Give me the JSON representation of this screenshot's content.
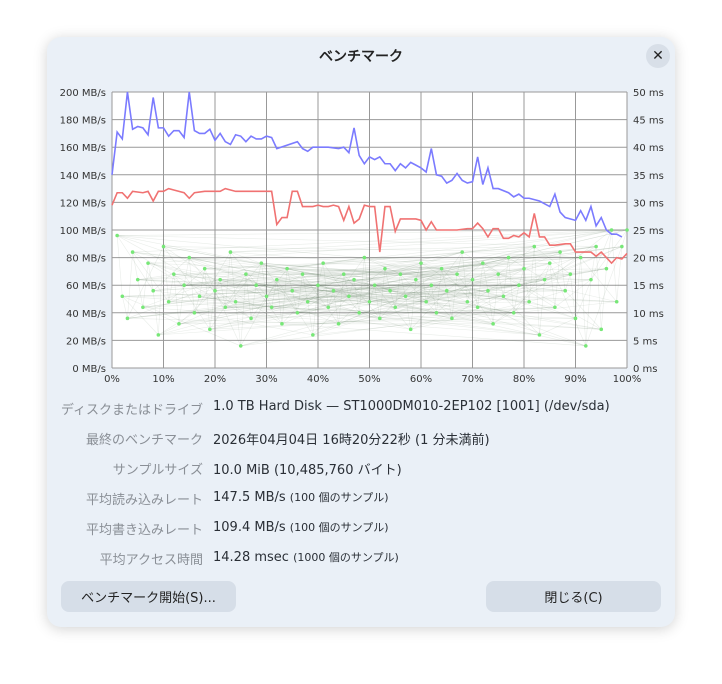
{
  "dialog": {
    "title": "ベンチマーク",
    "close_icon": "close-icon"
  },
  "colors": {
    "read": "#7b7bff",
    "write": "#f07272",
    "access": "#77e777",
    "bg": "#eaf0f7"
  },
  "chart_data": {
    "type": "line",
    "xlabel": "",
    "ylabel_left": "MB/s",
    "ylabel_right": "ms",
    "xlim": [
      0,
      100
    ],
    "ylim_left": [
      0,
      200
    ],
    "ylim_right": [
      0,
      50
    ],
    "x_ticks": [
      "0%",
      "10%",
      "20%",
      "30%",
      "40%",
      "50%",
      "60%",
      "70%",
      "80%",
      "90%",
      "100%"
    ],
    "y_ticks_left": [
      "0 MB/s",
      "20 MB/s",
      "40 MB/s",
      "60 MB/s",
      "80 MB/s",
      "100 MB/s",
      "120 MB/s",
      "140 MB/s",
      "160 MB/s",
      "180 MB/s",
      "200 MB/s"
    ],
    "y_ticks_right": [
      "0 ms",
      "5 ms",
      "10 ms",
      "15 ms",
      "20 ms",
      "25 ms",
      "30 ms",
      "35 ms",
      "40 ms",
      "45 ms",
      "50 ms"
    ],
    "grid": true,
    "series": [
      {
        "name": "read",
        "axis": "left",
        "points": [
          [
            0,
            140
          ],
          [
            1,
            171
          ],
          [
            2,
            166
          ],
          [
            3,
            200
          ],
          [
            4,
            173
          ],
          [
            5,
            175
          ],
          [
            6,
            174
          ],
          [
            7,
            169
          ],
          [
            8,
            196
          ],
          [
            9,
            174
          ],
          [
            10,
            174
          ],
          [
            11,
            168
          ],
          [
            12,
            172
          ],
          [
            13,
            172
          ],
          [
            14,
            167
          ],
          [
            15,
            200
          ],
          [
            16,
            172
          ],
          [
            17,
            170
          ],
          [
            18,
            170
          ],
          [
            19,
            173
          ],
          [
            20,
            165
          ],
          [
            21,
            170
          ],
          [
            22,
            164
          ],
          [
            23,
            162
          ],
          [
            24,
            169
          ],
          [
            25,
            168
          ],
          [
            26,
            164
          ],
          [
            27,
            168
          ],
          [
            28,
            166
          ],
          [
            29,
            166
          ],
          [
            30,
            168
          ],
          [
            31,
            167
          ],
          [
            32,
            159
          ],
          [
            36,
            164
          ],
          [
            37,
            159
          ],
          [
            38,
            157
          ],
          [
            39,
            160
          ],
          [
            42,
            160
          ],
          [
            44,
            159
          ],
          [
            45,
            160
          ],
          [
            46,
            156
          ],
          [
            47,
            174
          ],
          [
            48,
            154
          ],
          [
            49,
            148
          ],
          [
            50,
            153
          ],
          [
            51,
            151
          ],
          [
            52,
            153
          ],
          [
            53,
            148
          ],
          [
            54,
            148
          ],
          [
            55,
            143
          ],
          [
            56,
            148
          ],
          [
            57,
            145
          ],
          [
            58,
            149
          ],
          [
            59,
            147
          ],
          [
            60,
            145
          ],
          [
            61,
            142
          ],
          [
            62,
            159
          ],
          [
            63,
            140
          ],
          [
            64,
            139
          ],
          [
            65,
            134
          ],
          [
            66,
            136
          ],
          [
            67,
            141
          ],
          [
            68,
            136
          ],
          [
            69,
            134
          ],
          [
            70,
            135
          ],
          [
            71,
            153
          ],
          [
            72,
            133
          ],
          [
            73,
            145
          ],
          [
            74,
            130
          ],
          [
            75,
            130
          ],
          [
            77,
            127
          ],
          [
            78,
            124
          ],
          [
            79,
            126
          ],
          [
            80,
            123
          ],
          [
            81,
            123
          ],
          [
            83,
            121
          ],
          [
            85,
            117
          ],
          [
            86,
            126
          ],
          [
            87,
            113
          ],
          [
            88,
            109
          ],
          [
            90,
            107
          ],
          [
            91,
            114
          ],
          [
            92,
            107
          ],
          [
            93,
            117
          ],
          [
            94,
            103
          ],
          [
            95,
            109
          ],
          [
            96,
            100
          ],
          [
            97,
            97
          ],
          [
            98,
            97
          ],
          [
            99,
            95
          ]
        ]
      },
      {
        "name": "write",
        "axis": "left",
        "points": [
          [
            0,
            118
          ],
          [
            1,
            127
          ],
          [
            2,
            127
          ],
          [
            3,
            123
          ],
          [
            4,
            128
          ],
          [
            6,
            127
          ],
          [
            7,
            128
          ],
          [
            8,
            121
          ],
          [
            9,
            128
          ],
          [
            10,
            128
          ],
          [
            11,
            130
          ],
          [
            12,
            129
          ],
          [
            14,
            127
          ],
          [
            15,
            123
          ],
          [
            16,
            127
          ],
          [
            18,
            128
          ],
          [
            21,
            128
          ],
          [
            22,
            130
          ],
          [
            24,
            128
          ],
          [
            26,
            128
          ],
          [
            30,
            128
          ],
          [
            31,
            128
          ],
          [
            32,
            104
          ],
          [
            33,
            109
          ],
          [
            34,
            109
          ],
          [
            35,
            128
          ],
          [
            36,
            128
          ],
          [
            37,
            117
          ],
          [
            39,
            117
          ],
          [
            40,
            118
          ],
          [
            41,
            117
          ],
          [
            42,
            117
          ],
          [
            43,
            118
          ],
          [
            44,
            117
          ],
          [
            45,
            107
          ],
          [
            46,
            117
          ],
          [
            47,
            105
          ],
          [
            48,
            108
          ],
          [
            49,
            118
          ],
          [
            50,
            117
          ],
          [
            51,
            117
          ],
          [
            52,
            84
          ],
          [
            53,
            117
          ],
          [
            54,
            117
          ],
          [
            55,
            99
          ],
          [
            56,
            108
          ],
          [
            57,
            108
          ],
          [
            58,
            108
          ],
          [
            59,
            108
          ],
          [
            60,
            107
          ],
          [
            61,
            100
          ],
          [
            62,
            106
          ],
          [
            63,
            100
          ],
          [
            65,
            100
          ],
          [
            67,
            100
          ],
          [
            69,
            101
          ],
          [
            70,
            101
          ],
          [
            71,
            105
          ],
          [
            72,
            101
          ],
          [
            73,
            95
          ],
          [
            74,
            101
          ],
          [
            75,
            101
          ],
          [
            76,
            94
          ],
          [
            77,
            94
          ],
          [
            78,
            96
          ],
          [
            79,
            95
          ],
          [
            80,
            98
          ],
          [
            81,
            95
          ],
          [
            82,
            112
          ],
          [
            83,
            95
          ],
          [
            84,
            95
          ],
          [
            85,
            89
          ],
          [
            86,
            89
          ],
          [
            88,
            90
          ],
          [
            89,
            90
          ],
          [
            90,
            84
          ],
          [
            91,
            84
          ],
          [
            92,
            84
          ],
          [
            93,
            84
          ],
          [
            94,
            81
          ],
          [
            95,
            84
          ],
          [
            96,
            80
          ],
          [
            97,
            76
          ],
          [
            98,
            80
          ],
          [
            99,
            79
          ],
          [
            100,
            83
          ]
        ]
      },
      {
        "name": "access_time",
        "axis": "right",
        "type": "scatter",
        "points": [
          [
            1,
            24
          ],
          [
            2,
            13
          ],
          [
            3,
            9
          ],
          [
            4,
            21
          ],
          [
            5,
            16
          ],
          [
            6,
            11
          ],
          [
            7,
            19
          ],
          [
            8,
            14
          ],
          [
            9,
            6
          ],
          [
            10,
            22
          ],
          [
            11,
            12
          ],
          [
            12,
            17
          ],
          [
            13,
            8
          ],
          [
            14,
            15
          ],
          [
            15,
            20
          ],
          [
            16,
            10
          ],
          [
            17,
            13
          ],
          [
            18,
            18
          ],
          [
            19,
            7
          ],
          [
            20,
            14
          ],
          [
            21,
            16
          ],
          [
            22,
            11
          ],
          [
            23,
            21
          ],
          [
            24,
            12
          ],
          [
            25,
            4
          ],
          [
            26,
            17
          ],
          [
            27,
            9
          ],
          [
            28,
            15
          ],
          [
            29,
            19
          ],
          [
            30,
            13
          ],
          [
            31,
            11
          ],
          [
            32,
            16
          ],
          [
            33,
            8
          ],
          [
            34,
            18
          ],
          [
            35,
            14
          ],
          [
            36,
            10
          ],
          [
            37,
            17
          ],
          [
            38,
            12
          ],
          [
            39,
            6
          ],
          [
            40,
            15
          ],
          [
            41,
            19
          ],
          [
            42,
            11
          ],
          [
            43,
            14
          ],
          [
            44,
            8
          ],
          [
            45,
            17
          ],
          [
            46,
            13
          ],
          [
            47,
            16
          ],
          [
            48,
            10
          ],
          [
            49,
            20
          ],
          [
            50,
            12
          ],
          [
            51,
            15
          ],
          [
            52,
            9
          ],
          [
            53,
            18
          ],
          [
            54,
            14
          ],
          [
            55,
            11
          ],
          [
            56,
            17
          ],
          [
            57,
            13
          ],
          [
            58,
            7
          ],
          [
            59,
            16
          ],
          [
            60,
            19
          ],
          [
            61,
            12
          ],
          [
            62,
            15
          ],
          [
            63,
            10
          ],
          [
            64,
            18
          ],
          [
            65,
            14
          ],
          [
            66,
            9
          ],
          [
            67,
            17
          ],
          [
            68,
            21
          ],
          [
            69,
            12
          ],
          [
            70,
            16
          ],
          [
            71,
            11
          ],
          [
            72,
            19
          ],
          [
            73,
            14
          ],
          [
            74,
            8
          ],
          [
            75,
            17
          ],
          [
            76,
            13
          ],
          [
            77,
            20
          ],
          [
            78,
            10
          ],
          [
            79,
            15
          ],
          [
            80,
            18
          ],
          [
            81,
            12
          ],
          [
            82,
            22
          ],
          [
            83,
            6
          ],
          [
            84,
            16
          ],
          [
            85,
            19
          ],
          [
            86,
            11
          ],
          [
            87,
            21
          ],
          [
            88,
            14
          ],
          [
            89,
            17
          ],
          [
            90,
            9
          ],
          [
            91,
            20
          ],
          [
            92,
            4
          ],
          [
            93,
            16
          ],
          [
            94,
            22
          ],
          [
            95,
            7
          ],
          [
            96,
            18
          ],
          [
            97,
            25
          ],
          [
            98,
            12
          ],
          [
            99,
            22
          ],
          [
            100,
            25
          ]
        ]
      }
    ]
  },
  "info": [
    {
      "label": "ディスクまたはドライブ",
      "value": "1.0 TB Hard Disk — ST1000DM010-2EP102 [1001] (/dev/sda)",
      "note": ""
    },
    {
      "label": "最終のベンチマーク",
      "value": "2026年04月04日 16時20分22秒 (1 分未満前)",
      "note": ""
    },
    {
      "label": "サンプルサイズ",
      "value": "10.0 MiB (10,485,760 バイト)",
      "note": ""
    },
    {
      "label": "平均読み込みレート",
      "value": "147.5 MB/s",
      "note": "(100 個のサンプル)"
    },
    {
      "label": "平均書き込みレート",
      "value": "109.4 MB/s",
      "note": "(100 個のサンプル)"
    },
    {
      "label": "平均アクセス時間",
      "value": "14.28 msec",
      "note": "(1000 個のサンプル)"
    }
  ],
  "buttons": {
    "start": "ベンチマーク開始(S)...",
    "close": "閉じる(C)"
  }
}
